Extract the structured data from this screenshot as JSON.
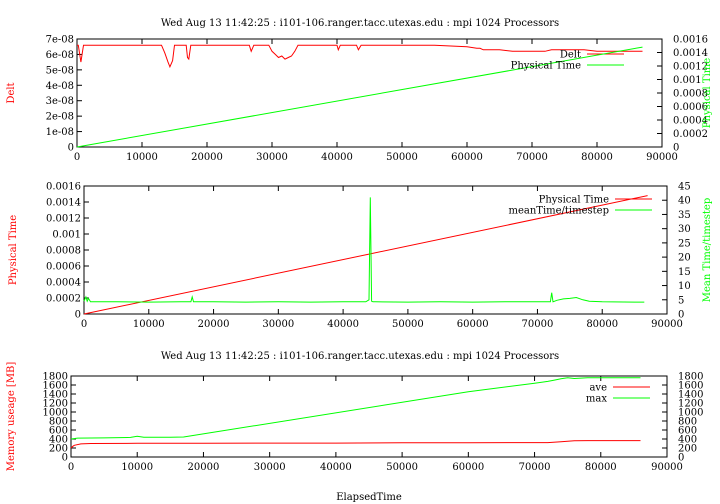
{
  "chart_data": [
    {
      "type": "line",
      "title": "Wed Aug 13 11:42:25 : i101-106.ranger.tacc.utexas.edu : mpi 1024 Processors",
      "xlabel": "",
      "ylabel": "Delt",
      "y2label": "Physical Time",
      "xlim": [
        0,
        90000
      ],
      "ylim": [
        0,
        7e-08
      ],
      "y2lim": [
        0,
        0.0016
      ],
      "x_ticks": [
        0,
        10000,
        20000,
        30000,
        40000,
        50000,
        60000,
        70000,
        80000,
        90000
      ],
      "y_ticks": [
        "0",
        "1e-08",
        "2e-08",
        "3e-08",
        "4e-08",
        "5e-08",
        "6e-08",
        "7e-08"
      ],
      "y2_ticks": [
        "0",
        "0.0002",
        "0.0004",
        "0.0006",
        "0.0008",
        "0.001",
        "0.0012",
        "0.0014",
        "0.0016"
      ],
      "legend_position": "top-right",
      "series": [
        {
          "name": "Delt",
          "axis": "y",
          "color": "#ff0000",
          "x": [
            0,
            200,
            600,
            1000,
            13000,
            13500,
            14000,
            14300,
            14700,
            15000,
            16000,
            16800,
            17000,
            17200,
            17500,
            18000,
            24000,
            26500,
            26800,
            27200,
            27500,
            28500,
            29500,
            30000,
            30500,
            31000,
            31500,
            32000,
            32500,
            33000,
            33500,
            34000,
            34500,
            35000,
            36000,
            40000,
            40200,
            40500,
            41000,
            42000,
            42500,
            43000,
            43300,
            43700,
            44000,
            45000,
            50000,
            55000,
            60000,
            61500,
            62000,
            62500,
            63000,
            65000,
            67000,
            70000,
            72000,
            73000,
            74000,
            76000,
            78000,
            80000,
            85000,
            87000
          ],
          "y": [
            6.6e-08,
            6.6e-08,
            5.5e-08,
            6.6e-08,
            6.6e-08,
            6.1e-08,
            5.5e-08,
            5.2e-08,
            5.6e-08,
            6.6e-08,
            6.6e-08,
            6.6e-08,
            5.8e-08,
            5.7e-08,
            6.6e-08,
            6.6e-08,
            6.6e-08,
            6.6e-08,
            6.2e-08,
            6.6e-08,
            6.6e-08,
            6.6e-08,
            6.6e-08,
            6.2e-08,
            6e-08,
            5.8e-08,
            5.9e-08,
            5.7e-08,
            5.8e-08,
            5.9e-08,
            6.2e-08,
            6.6e-08,
            6.6e-08,
            6.6e-08,
            6.6e-08,
            6.6e-08,
            6.3e-08,
            6.6e-08,
            6.6e-08,
            6.6e-08,
            6.6e-08,
            6.6e-08,
            6.3e-08,
            6.6e-08,
            6.6e-08,
            6.6e-08,
            6.6e-08,
            6.6e-08,
            6.5e-08,
            6.4e-08,
            6.4e-08,
            6.3e-08,
            6.3e-08,
            6.3e-08,
            6.2e-08,
            6.2e-08,
            6.2e-08,
            6.3e-08,
            6.3e-08,
            6.3e-08,
            6.3e-08,
            6.2e-08,
            6.2e-08,
            6.2e-08
          ]
        },
        {
          "name": "Physical Time",
          "axis": "y2",
          "color": "#00ff00",
          "x": [
            0,
            87000
          ],
          "y": [
            0,
            0.00148
          ]
        }
      ]
    },
    {
      "type": "line",
      "title": "",
      "xlabel": "",
      "ylabel": "Physical Time",
      "y2label": "Mean Time/timestep",
      "xlim": [
        0,
        90000
      ],
      "ylim": [
        0,
        0.0016
      ],
      "y2lim": [
        0,
        45
      ],
      "x_ticks": [
        0,
        10000,
        20000,
        30000,
        40000,
        50000,
        60000,
        70000,
        80000,
        90000
      ],
      "y_ticks": [
        "0",
        "0.0002",
        "0.0004",
        "0.0006",
        "0.0008",
        "0.001",
        "0.0012",
        "0.0014",
        "0.0016"
      ],
      "y2_ticks": [
        "0",
        "5",
        "10",
        "15",
        "20",
        "25",
        "30",
        "35",
        "40",
        "45"
      ],
      "legend_position": "top-right",
      "series": [
        {
          "name": "Physical Time",
          "axis": "y",
          "color": "#ff0000",
          "x": [
            0,
            87000
          ],
          "y": [
            0,
            0.00148
          ]
        },
        {
          "name": "meanTime/timestep",
          "axis": "y2",
          "color": "#00ff00",
          "x": [
            0,
            300,
            500,
            700,
            1000,
            5000,
            10000,
            15000,
            16500,
            16700,
            16900,
            20000,
            25000,
            30000,
            35000,
            40000,
            43500,
            44000,
            44200,
            44400,
            44600,
            45000,
            50000,
            55000,
            60000,
            65000,
            70000,
            72000,
            72200,
            72400,
            73000,
            74000,
            75000,
            76000,
            77000,
            78000,
            80000,
            85000,
            86500
          ],
          "y": [
            4.5,
            6,
            4.5,
            5.5,
            4.3,
            4.3,
            4.2,
            4.3,
            4.3,
            6,
            4.3,
            4.3,
            4.2,
            4.3,
            4.2,
            4.3,
            4.3,
            5,
            41,
            4.5,
            4.3,
            4.3,
            4.2,
            4.3,
            4.2,
            4.3,
            4.3,
            4.3,
            7.5,
            4.3,
            4.8,
            5.3,
            5.5,
            5.8,
            5,
            4.5,
            4.3,
            4.2,
            4.2
          ]
        }
      ]
    },
    {
      "type": "line",
      "title": "Wed Aug 13 11:42:25 : i101-106.ranger.tacc.utexas.edu : mpi 1024 Processors",
      "xlabel": "ElapsedTime",
      "ylabel": "Memory useage [MB]",
      "y2label": "",
      "xlim": [
        0,
        90000
      ],
      "ylim": [
        0,
        1800
      ],
      "y2lim": [
        0,
        1800
      ],
      "x_ticks": [
        0,
        10000,
        20000,
        30000,
        40000,
        50000,
        60000,
        70000,
        80000,
        90000
      ],
      "y_ticks": [
        "0",
        "200",
        "400",
        "600",
        "800",
        "1000",
        "1200",
        "1400",
        "1600",
        "1800"
      ],
      "y2_ticks": [
        "0",
        "200",
        "400",
        "600",
        "800",
        "1000",
        "1200",
        "1400",
        "1600",
        "1800"
      ],
      "legend_position": "top-right",
      "series": [
        {
          "name": "ave",
          "axis": "y",
          "color": "#ff0000",
          "x": [
            0,
            300,
            500,
            1500,
            3000,
            10000,
            20000,
            30000,
            40000,
            50000,
            60000,
            70000,
            72000,
            74000,
            76000,
            78000,
            80000,
            86000
          ],
          "y": [
            200,
            240,
            260,
            290,
            300,
            305,
            305,
            310,
            310,
            315,
            315,
            320,
            320,
            340,
            360,
            365,
            365,
            365
          ]
        },
        {
          "name": "max",
          "axis": "y",
          "color": "#00ff00",
          "x": [
            0,
            1000,
            5000,
            9000,
            10000,
            11000,
            15000,
            17000,
            60000,
            70000,
            72000,
            73000,
            74000,
            75000,
            76000,
            78000,
            80000,
            86000
          ],
          "y": [
            400,
            420,
            425,
            435,
            460,
            440,
            440,
            445,
            1450,
            1640,
            1680,
            1710,
            1740,
            1760,
            1745,
            1760,
            1760,
            1760
          ]
        }
      ]
    }
  ]
}
